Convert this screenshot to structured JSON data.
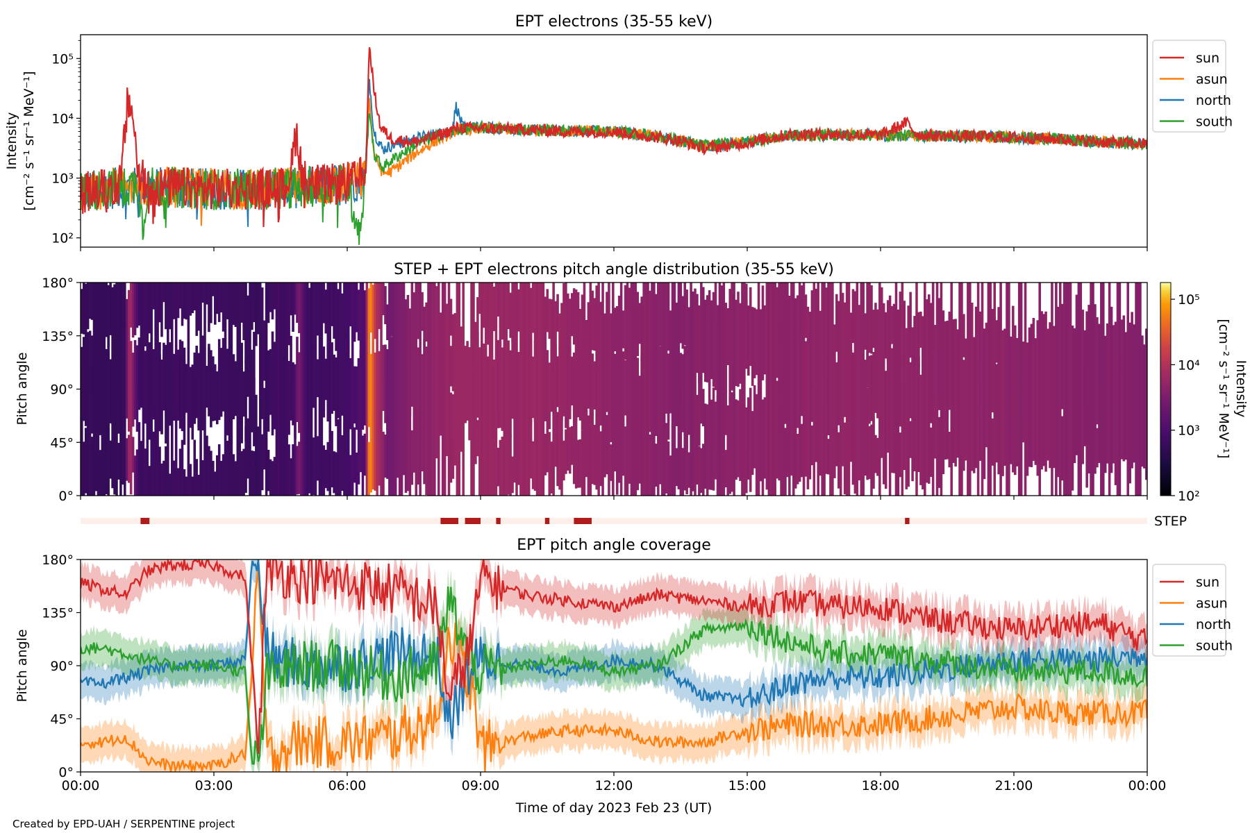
{
  "chart_data": [
    {
      "type": "line",
      "title": "EPT electrons (35-55 keV)",
      "ylabel_line1": "Intensity",
      "ylabel_line2": "[cm⁻² s⁻¹ sr⁻¹ MeV⁻¹]",
      "yscale": "log",
      "ylim": [
        70,
        250000
      ],
      "yticks": [
        {
          "value": 100,
          "label": "10²"
        },
        {
          "value": 1000,
          "label": "10³"
        },
        {
          "value": 10000,
          "label": "10⁴"
        },
        {
          "value": 100000,
          "label": "10⁵"
        }
      ],
      "xlim": [
        0,
        24
      ],
      "legend_position": "outside-right",
      "series": [
        {
          "name": "sun",
          "color": "#d62728",
          "x": [
            0,
            0.5,
            0.9,
            1.05,
            1.15,
            1.3,
            1.5,
            2,
            3,
            4,
            4.6,
            4.75,
            4.85,
            5.0,
            5.4,
            5.8,
            6.2,
            6.42,
            6.5,
            6.6,
            6.75,
            7.0,
            7.5,
            8,
            8.5,
            9,
            10,
            11,
            12,
            13,
            13.5,
            14,
            14.5,
            15,
            15.5,
            16,
            17,
            18,
            18.6,
            18.8,
            19,
            20,
            21,
            22,
            23,
            24
          ],
          "y": [
            550,
            650,
            800,
            15000,
            17000,
            1200,
            700,
            700,
            650,
            650,
            700,
            1500,
            6500,
            1000,
            750,
            800,
            900,
            1200,
            175000,
            30000,
            7000,
            4500,
            4000,
            5000,
            7000,
            6800,
            6500,
            6000,
            6000,
            4800,
            4200,
            3200,
            3400,
            3900,
            4700,
            5400,
            5400,
            5200,
            8500,
            5500,
            5200,
            5000,
            4800,
            4500,
            4000,
            3700
          ]
        },
        {
          "name": "asun",
          "color": "#ff7f0e",
          "x": [
            0,
            1,
            2,
            3,
            4,
            5,
            6,
            6.4,
            6.5,
            6.6,
            6.8,
            7.0,
            7.5,
            8,
            8.5,
            9,
            10,
            11,
            12,
            13,
            14,
            15,
            16,
            17,
            18,
            19,
            20,
            21,
            22,
            23,
            24
          ],
          "y": [
            600,
            700,
            700,
            650,
            650,
            700,
            800,
            1000,
            20000,
            2500,
            1200,
            1300,
            2500,
            4200,
            6500,
            6800,
            6500,
            6200,
            6000,
            5000,
            3500,
            4000,
            5200,
            5300,
            5200,
            5100,
            5000,
            4800,
            4500,
            4000,
            3700
          ]
        },
        {
          "name": "north",
          "color": "#1f77b4",
          "x": [
            0,
            1,
            2,
            3,
            4,
            5,
            6,
            6.4,
            6.5,
            6.6,
            6.8,
            7.0,
            7.5,
            8,
            8.35,
            8.45,
            8.6,
            9,
            10,
            11,
            12,
            13,
            14,
            15,
            16,
            17,
            18,
            19,
            20,
            21,
            22,
            23,
            24
          ],
          "y": [
            600,
            700,
            700,
            650,
            650,
            700,
            800,
            1000,
            45000,
            6000,
            3000,
            3500,
            4500,
            5500,
            6000,
            16000,
            7000,
            7000,
            6500,
            6200,
            6000,
            5000,
            3500,
            4000,
            5200,
            5300,
            5200,
            5100,
            5000,
            4800,
            4500,
            4000,
            3700
          ]
        },
        {
          "name": "south",
          "color": "#2ca02c",
          "x": [
            0,
            1,
            1.3,
            1.4,
            1.5,
            2,
            3,
            4,
            5,
            6,
            6.3,
            6.4,
            6.5,
            6.6,
            6.8,
            7.0,
            7.5,
            8,
            8.5,
            9,
            10,
            11,
            12,
            13,
            14,
            15,
            16,
            17,
            18,
            19,
            20,
            21,
            22,
            23,
            24
          ],
          "y": [
            600,
            700,
            800,
            150,
            700,
            700,
            650,
            650,
            700,
            800,
            120,
            1000,
            15000,
            2500,
            1500,
            2000,
            3500,
            5000,
            6500,
            6800,
            6500,
            6200,
            6000,
            5000,
            3500,
            4000,
            5200,
            5300,
            5200,
            5100,
            5000,
            4800,
            4500,
            4000,
            3700
          ]
        }
      ]
    },
    {
      "type": "heatmap",
      "title": "STEP + EPT electrons pitch angle distribution (35-55 keV)",
      "ylabel": "Pitch angle",
      "ylim": [
        0,
        180
      ],
      "yticks": [
        "0°",
        "45°",
        "90°",
        "135°",
        "180°"
      ],
      "colorbar": {
        "label_line1": "Intensity",
        "label_line2": "[cm⁻² s⁻¹ sr⁻¹ MeV⁻¹]",
        "scale": "log",
        "range": [
          100,
          180000
        ],
        "ticks": [
          {
            "value": 100,
            "label": "10²"
          },
          {
            "value": 1000,
            "label": "10³"
          },
          {
            "value": 10000,
            "label": "10⁴"
          },
          {
            "value": 100000,
            "label": "10⁵"
          }
        ]
      },
      "color_by_time": {
        "x": [
          0,
          1,
          1.1,
          1.3,
          2,
          4,
          4.8,
          4.9,
          5.1,
          6,
          6.4,
          6.5,
          6.65,
          6.9,
          7.5,
          8.5,
          10,
          13.5,
          15,
          18,
          21,
          24
        ],
        "intensity": [
          600,
          600,
          9000,
          700,
          700,
          650,
          800,
          3000,
          700,
          800,
          1200,
          100000,
          10000,
          2500,
          4000,
          6000,
          6000,
          4000,
          4500,
          5000,
          4500,
          3700
        ]
      },
      "gaps_note": "white gaps follow EPT pitch-angle coverage"
    },
    {
      "type": "bar",
      "label": "STEP",
      "segments": [
        [
          1.35,
          1.55
        ],
        [
          8.1,
          8.5
        ],
        [
          8.65,
          9.0
        ],
        [
          9.35,
          9.45
        ],
        [
          10.45,
          10.55
        ],
        [
          11.1,
          11.5
        ],
        [
          18.55,
          18.65
        ]
      ],
      "colors": {
        "background": "#fdf0ea",
        "active": "#b01c1c"
      }
    },
    {
      "type": "line",
      "title": "EPT pitch angle coverage",
      "ylabel": "Pitch angle",
      "xlabel": "Time of day 2023 Feb 23 (UT)",
      "ylim": [
        0,
        180
      ],
      "yticks": [
        "0°",
        "45°",
        "90°",
        "135°",
        "180°"
      ],
      "xticks": [
        "00:00",
        "03:00",
        "06:00",
        "09:00",
        "12:00",
        "15:00",
        "18:00",
        "21:00",
        "00:00"
      ],
      "xlim": [
        0,
        24
      ],
      "legend_position": "outside-right",
      "shaded_band_halfwidth_deg": 15,
      "series": [
        {
          "name": "sun",
          "color": "#d62728",
          "x": [
            0,
            0.5,
            1,
            1.5,
            2,
            3,
            3.7,
            3.85,
            4.0,
            4.2,
            4.5,
            5,
            6,
            7,
            8,
            8.3,
            8.8,
            9,
            10,
            11,
            12,
            13,
            14,
            15,
            16,
            17,
            18,
            19,
            20,
            21,
            22,
            23,
            24
          ],
          "y": [
            160,
            155,
            150,
            170,
            175,
            175,
            165,
            95,
            20,
            175,
            170,
            165,
            160,
            155,
            140,
            60,
            110,
            165,
            150,
            145,
            140,
            150,
            145,
            140,
            145,
            140,
            140,
            130,
            125,
            120,
            125,
            125,
            110
          ]
        },
        {
          "name": "asun",
          "color": "#ff7f0e",
          "x": [
            0,
            0.5,
            1,
            1.5,
            2,
            3,
            3.7,
            3.85,
            4.0,
            4.2,
            4.5,
            5,
            6,
            7,
            8,
            8.3,
            8.8,
            9,
            10,
            11,
            12,
            13,
            14,
            15,
            16,
            17,
            18,
            19,
            20,
            21,
            22,
            23,
            24
          ],
          "y": [
            25,
            25,
            30,
            10,
            5,
            5,
            15,
            80,
            170,
            10,
            20,
            25,
            25,
            30,
            45,
            120,
            70,
            20,
            30,
            35,
            35,
            25,
            25,
            35,
            40,
            40,
            40,
            45,
            50,
            55,
            50,
            50,
            50
          ]
        },
        {
          "name": "north",
          "color": "#1f77b4",
          "x": [
            0,
            0.5,
            1,
            1.5,
            2,
            3,
            3.7,
            3.85,
            4.0,
            4.2,
            4.5,
            5,
            6,
            7,
            8,
            8.3,
            8.8,
            9,
            10,
            11,
            12,
            13,
            14,
            15,
            16,
            17,
            18,
            19,
            20,
            21,
            22,
            23,
            24
          ],
          "y": [
            75,
            75,
            80,
            85,
            90,
            90,
            95,
            175,
            175,
            100,
            95,
            90,
            90,
            100,
            100,
            40,
            90,
            95,
            90,
            85,
            95,
            90,
            65,
            60,
            75,
            80,
            80,
            85,
            90,
            95,
            95,
            95,
            100
          ]
        },
        {
          "name": "south",
          "color": "#2ca02c",
          "x": [
            0,
            0.5,
            1,
            1.5,
            2,
            3,
            3.7,
            3.85,
            4.0,
            4.2,
            4.5,
            5,
            6,
            7,
            8,
            8.3,
            8.8,
            9,
            10,
            11,
            12,
            13,
            14,
            15,
            16,
            17,
            18,
            19,
            20,
            21,
            22,
            23,
            24
          ],
          "y": [
            105,
            105,
            100,
            95,
            90,
            90,
            85,
            10,
            5,
            80,
            85,
            90,
            90,
            80,
            90,
            145,
            90,
            85,
            90,
            95,
            85,
            90,
            120,
            125,
            110,
            100,
            100,
            95,
            90,
            85,
            85,
            85,
            80
          ]
        }
      ]
    }
  ],
  "footer": "Created by EPD-UAH / SERPENTINE project"
}
